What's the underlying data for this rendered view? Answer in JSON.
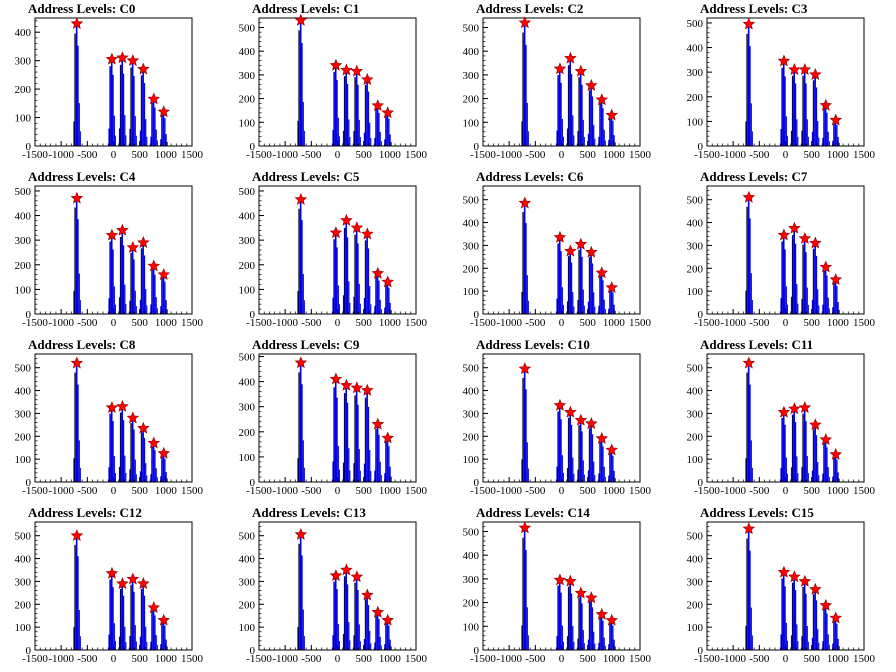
{
  "chart_data": [
    {
      "type": "bar",
      "title": "Address Levels: C0",
      "xlim": [
        -1500,
        1500
      ],
      "ylim": [
        0,
        450
      ],
      "xticks": [
        -1500,
        -1000,
        -500,
        0,
        500,
        1000,
        1500
      ],
      "yticks": [
        0,
        100,
        200,
        300,
        400
      ],
      "peaks": [
        {
          "x": -700,
          "y": 430
        },
        {
          "x": -30,
          "y": 305
        },
        {
          "x": 170,
          "y": 310
        },
        {
          "x": 370,
          "y": 300
        },
        {
          "x": 570,
          "y": 270
        },
        {
          "x": 770,
          "y": 165
        },
        {
          "x": 960,
          "y": 120
        }
      ]
    },
    {
      "type": "bar",
      "title": "Address Levels: C1",
      "xlim": [
        -1500,
        1500
      ],
      "ylim": [
        0,
        540
      ],
      "xticks": [
        -1500,
        -1000,
        -500,
        0,
        500,
        1000,
        1500
      ],
      "yticks": [
        0,
        100,
        200,
        300,
        400,
        500
      ],
      "peaks": [
        {
          "x": -700,
          "y": 530
        },
        {
          "x": -30,
          "y": 340
        },
        {
          "x": 170,
          "y": 320
        },
        {
          "x": 370,
          "y": 315
        },
        {
          "x": 570,
          "y": 280
        },
        {
          "x": 770,
          "y": 170
        },
        {
          "x": 960,
          "y": 140
        }
      ]
    },
    {
      "type": "bar",
      "title": "Address Levels: C2",
      "xlim": [
        -1500,
        1500
      ],
      "ylim": [
        0,
        540
      ],
      "xticks": [
        -1500,
        -1000,
        -500,
        0,
        500,
        1000,
        1500
      ],
      "yticks": [
        0,
        100,
        200,
        300,
        400,
        500
      ],
      "peaks": [
        {
          "x": -700,
          "y": 520
        },
        {
          "x": -30,
          "y": 325
        },
        {
          "x": 170,
          "y": 370
        },
        {
          "x": 370,
          "y": 315
        },
        {
          "x": 570,
          "y": 255
        },
        {
          "x": 770,
          "y": 195
        },
        {
          "x": 960,
          "y": 130
        }
      ]
    },
    {
      "type": "bar",
      "title": "Address Levels: C3",
      "xlim": [
        -1500,
        1500
      ],
      "ylim": [
        0,
        520
      ],
      "xticks": [
        -1500,
        -1000,
        -500,
        0,
        500,
        1000,
        1500
      ],
      "yticks": [
        0,
        100,
        200,
        300,
        400,
        500
      ],
      "peaks": [
        {
          "x": -700,
          "y": 495
        },
        {
          "x": -30,
          "y": 345
        },
        {
          "x": 170,
          "y": 310
        },
        {
          "x": 370,
          "y": 310
        },
        {
          "x": 570,
          "y": 290
        },
        {
          "x": 770,
          "y": 165
        },
        {
          "x": 960,
          "y": 105
        }
      ]
    },
    {
      "type": "bar",
      "title": "Address Levels: C4",
      "xlim": [
        -1500,
        1500
      ],
      "ylim": [
        0,
        520
      ],
      "xticks": [
        -1500,
        -1000,
        -500,
        0,
        500,
        1000,
        1500
      ],
      "yticks": [
        0,
        100,
        200,
        300,
        400,
        500
      ],
      "peaks": [
        {
          "x": -700,
          "y": 470
        },
        {
          "x": -30,
          "y": 320
        },
        {
          "x": 170,
          "y": 340
        },
        {
          "x": 370,
          "y": 270
        },
        {
          "x": 570,
          "y": 290
        },
        {
          "x": 770,
          "y": 195
        },
        {
          "x": 960,
          "y": 160
        }
      ]
    },
    {
      "type": "bar",
      "title": "Address Levels: C5",
      "xlim": [
        -1500,
        1500
      ],
      "ylim": [
        0,
        520
      ],
      "xticks": [
        -1500,
        -1000,
        -500,
        0,
        500,
        1000,
        1500
      ],
      "yticks": [
        0,
        100,
        200,
        300,
        400,
        500
      ],
      "peaks": [
        {
          "x": -700,
          "y": 465
        },
        {
          "x": -30,
          "y": 330
        },
        {
          "x": 170,
          "y": 380
        },
        {
          "x": 370,
          "y": 350
        },
        {
          "x": 570,
          "y": 325
        },
        {
          "x": 770,
          "y": 165
        },
        {
          "x": 960,
          "y": 130
        }
      ]
    },
    {
      "type": "bar",
      "title": "Address Levels: C6",
      "xlim": [
        -1500,
        1500
      ],
      "ylim": [
        0,
        560
      ],
      "xticks": [
        -1500,
        -1000,
        -500,
        0,
        500,
        1000,
        1500
      ],
      "yticks": [
        0,
        100,
        200,
        300,
        400,
        500
      ],
      "peaks": [
        {
          "x": -700,
          "y": 485
        },
        {
          "x": -30,
          "y": 335
        },
        {
          "x": 170,
          "y": 275
        },
        {
          "x": 370,
          "y": 305
        },
        {
          "x": 570,
          "y": 270
        },
        {
          "x": 770,
          "y": 180
        },
        {
          "x": 960,
          "y": 115
        }
      ]
    },
    {
      "type": "bar",
      "title": "Address Levels: C7",
      "xlim": [
        -1500,
        1500
      ],
      "ylim": [
        0,
        560
      ],
      "xticks": [
        -1500,
        -1000,
        -500,
        0,
        500,
        1000,
        1500
      ],
      "yticks": [
        0,
        100,
        200,
        300,
        400,
        500
      ],
      "peaks": [
        {
          "x": -700,
          "y": 510
        },
        {
          "x": -30,
          "y": 345
        },
        {
          "x": 170,
          "y": 375
        },
        {
          "x": 370,
          "y": 330
        },
        {
          "x": 570,
          "y": 310
        },
        {
          "x": 770,
          "y": 205
        },
        {
          "x": 960,
          "y": 150
        }
      ]
    },
    {
      "type": "bar",
      "title": "Address Levels: C8",
      "xlim": [
        -1500,
        1500
      ],
      "ylim": [
        0,
        560
      ],
      "xticks": [
        -1500,
        -1000,
        -500,
        0,
        500,
        1000,
        1500
      ],
      "yticks": [
        0,
        100,
        200,
        300,
        400,
        500
      ],
      "peaks": [
        {
          "x": -700,
          "y": 520
        },
        {
          "x": -30,
          "y": 325
        },
        {
          "x": 170,
          "y": 330
        },
        {
          "x": 370,
          "y": 280
        },
        {
          "x": 570,
          "y": 235
        },
        {
          "x": 770,
          "y": 170
        },
        {
          "x": 960,
          "y": 125
        }
      ]
    },
    {
      "type": "bar",
      "title": "Address Levels: C9",
      "xlim": [
        -1500,
        1500
      ],
      "ylim": [
        0,
        510
      ],
      "xticks": [
        -1500,
        -1000,
        -500,
        0,
        500,
        1000,
        1500
      ],
      "yticks": [
        0,
        100,
        200,
        300,
        400,
        500
      ],
      "peaks": [
        {
          "x": -700,
          "y": 475
        },
        {
          "x": -30,
          "y": 410
        },
        {
          "x": 170,
          "y": 385
        },
        {
          "x": 370,
          "y": 375
        },
        {
          "x": 570,
          "y": 365
        },
        {
          "x": 770,
          "y": 230
        },
        {
          "x": 960,
          "y": 175
        }
      ]
    },
    {
      "type": "bar",
      "title": "Address Levels: C10",
      "xlim": [
        -1500,
        1500
      ],
      "ylim": [
        0,
        560
      ],
      "xticks": [
        -1500,
        -1000,
        -500,
        0,
        500,
        1000,
        1500
      ],
      "yticks": [
        0,
        100,
        200,
        300,
        400,
        500
      ],
      "peaks": [
        {
          "x": -700,
          "y": 495
        },
        {
          "x": -30,
          "y": 335
        },
        {
          "x": 170,
          "y": 305
        },
        {
          "x": 370,
          "y": 270
        },
        {
          "x": 570,
          "y": 255
        },
        {
          "x": 770,
          "y": 190
        },
        {
          "x": 960,
          "y": 140
        }
      ]
    },
    {
      "type": "bar",
      "title": "Address Levels: C11",
      "xlim": [
        -1500,
        1500
      ],
      "ylim": [
        0,
        560
      ],
      "xticks": [
        -1500,
        -1000,
        -500,
        0,
        500,
        1000,
        1500
      ],
      "yticks": [
        0,
        100,
        200,
        300,
        400,
        500
      ],
      "peaks": [
        {
          "x": -700,
          "y": 520
        },
        {
          "x": -30,
          "y": 305
        },
        {
          "x": 170,
          "y": 320
        },
        {
          "x": 370,
          "y": 325
        },
        {
          "x": 570,
          "y": 250
        },
        {
          "x": 770,
          "y": 185
        },
        {
          "x": 960,
          "y": 120
        }
      ]
    },
    {
      "type": "bar",
      "title": "Address Levels: C12",
      "xlim": [
        -1500,
        1500
      ],
      "ylim": [
        0,
        560
      ],
      "xticks": [
        -1500,
        -1000,
        -500,
        0,
        500,
        1000,
        1500
      ],
      "yticks": [
        0,
        100,
        200,
        300,
        400,
        500
      ],
      "peaks": [
        {
          "x": -700,
          "y": 500
        },
        {
          "x": -30,
          "y": 335
        },
        {
          "x": 170,
          "y": 290
        },
        {
          "x": 370,
          "y": 310
        },
        {
          "x": 570,
          "y": 290
        },
        {
          "x": 770,
          "y": 185
        },
        {
          "x": 960,
          "y": 130
        }
      ]
    },
    {
      "type": "bar",
      "title": "Address Levels: C13",
      "xlim": [
        -1500,
        1500
      ],
      "ylim": [
        0,
        560
      ],
      "xticks": [
        -1500,
        -1000,
        -500,
        0,
        500,
        1000,
        1500
      ],
      "yticks": [
        0,
        100,
        200,
        300,
        400,
        500
      ],
      "peaks": [
        {
          "x": -700,
          "y": 505
        },
        {
          "x": -30,
          "y": 325
        },
        {
          "x": 170,
          "y": 350
        },
        {
          "x": 370,
          "y": 320
        },
        {
          "x": 570,
          "y": 240
        },
        {
          "x": 770,
          "y": 165
        },
        {
          "x": 960,
          "y": 130
        }
      ]
    },
    {
      "type": "bar",
      "title": "Address Levels: C14",
      "xlim": [
        -1500,
        1500
      ],
      "ylim": [
        0,
        540
      ],
      "xticks": [
        -1500,
        -1000,
        -500,
        0,
        500,
        1000,
        1500
      ],
      "yticks": [
        0,
        100,
        200,
        300,
        400,
        500
      ],
      "peaks": [
        {
          "x": -700,
          "y": 515
        },
        {
          "x": -30,
          "y": 295
        },
        {
          "x": 170,
          "y": 290
        },
        {
          "x": 370,
          "y": 240
        },
        {
          "x": 570,
          "y": 220
        },
        {
          "x": 770,
          "y": 150
        },
        {
          "x": 960,
          "y": 125
        }
      ]
    },
    {
      "type": "bar",
      "title": "Address Levels: C15",
      "xlim": [
        -1500,
        1500
      ],
      "ylim": [
        0,
        560
      ],
      "xticks": [
        -1500,
        -1000,
        -500,
        0,
        500,
        1000,
        1500
      ],
      "yticks": [
        0,
        100,
        200,
        300,
        400,
        500
      ],
      "peaks": [
        {
          "x": -700,
          "y": 530
        },
        {
          "x": -30,
          "y": 340
        },
        {
          "x": 170,
          "y": 320
        },
        {
          "x": 370,
          "y": 300
        },
        {
          "x": 570,
          "y": 265
        },
        {
          "x": 770,
          "y": 195
        },
        {
          "x": 960,
          "y": 140
        }
      ]
    }
  ],
  "colors": {
    "histogram": "#0000e6",
    "marker": "#ff0000",
    "axis": "#000000"
  }
}
